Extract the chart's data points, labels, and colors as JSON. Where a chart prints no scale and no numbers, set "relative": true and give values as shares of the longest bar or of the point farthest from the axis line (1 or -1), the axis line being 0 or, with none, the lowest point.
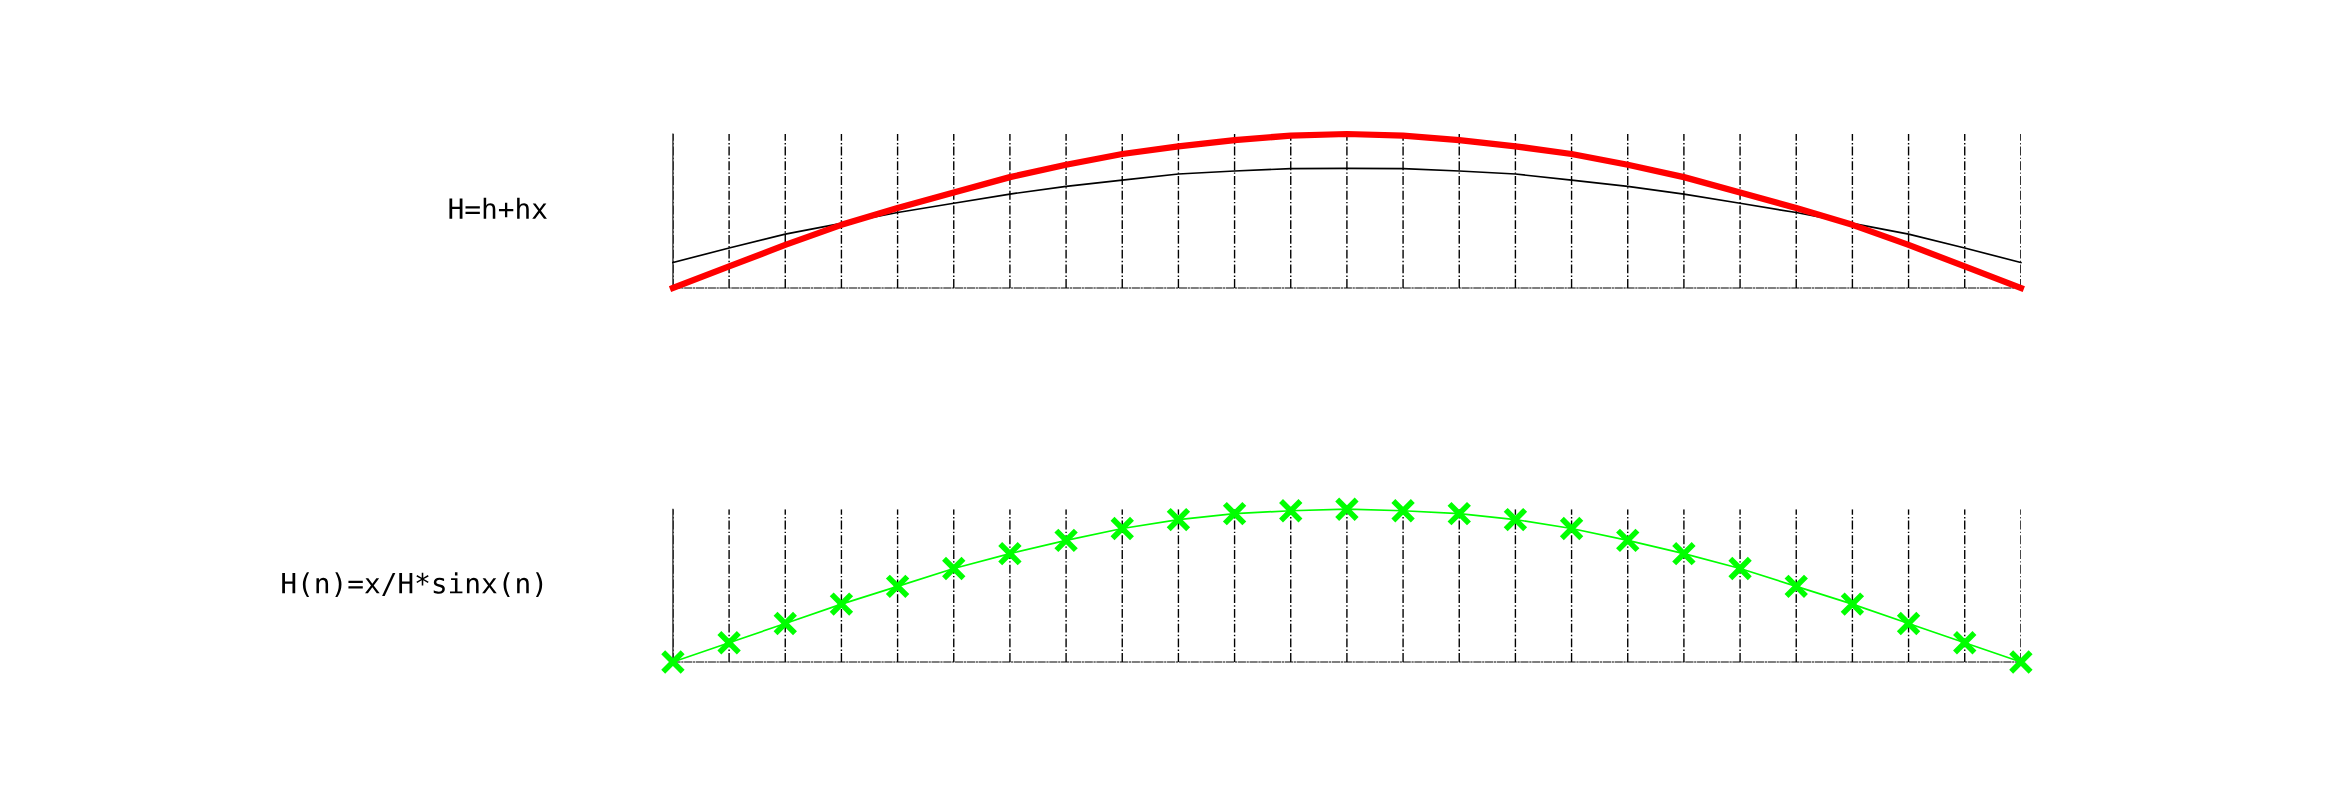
{
  "chart_data": [
    {
      "type": "line",
      "relative": true,
      "ylabel": "H=h+hx",
      "grid": "x",
      "categories": [
        null,
        null,
        null,
        null,
        null,
        null,
        null,
        null,
        null,
        null,
        null,
        null,
        null,
        null,
        null,
        null,
        null,
        null,
        null,
        null,
        null,
        null,
        null,
        null,
        null
      ],
      "series": [
        {
          "color": "#000000",
          "values": [
            0.165,
            0.26,
            0.35,
            0.42,
            0.49,
            0.55,
            0.61,
            0.66,
            0.7,
            0.74,
            0.76,
            0.775,
            0.777,
            0.775,
            0.76,
            0.74,
            0.7,
            0.66,
            0.61,
            0.55,
            0.49,
            0.42,
            0.35,
            0.26,
            0.165
          ]
        },
        {
          "color": "#ff0000",
          "values": [
            0,
            0.14,
            0.28,
            0.41,
            0.52,
            0.62,
            0.72,
            0.8,
            0.87,
            0.92,
            0.96,
            0.99,
            1,
            0.99,
            0.96,
            0.92,
            0.87,
            0.8,
            0.72,
            0.62,
            0.52,
            0.41,
            0.28,
            0.14,
            0
          ]
        }
      ]
    },
    {
      "type": "line",
      "relative": true,
      "ylabel": "H(n)=x/H*sinx(n)",
      "grid": "x",
      "marker": "cross",
      "categories": [
        null,
        null,
        null,
        null,
        null,
        null,
        null,
        null,
        null,
        null,
        null,
        null,
        null,
        null,
        null,
        null,
        null,
        null,
        null,
        null,
        null,
        null,
        null,
        null,
        null
      ],
      "series": [
        {
          "color": "#00ff00",
          "values": [
            0,
            0.126,
            0.252,
            0.379,
            0.495,
            0.612,
            0.709,
            0.796,
            0.874,
            0.932,
            0.971,
            0.99,
            1,
            0.99,
            0.971,
            0.932,
            0.874,
            0.796,
            0.709,
            0.612,
            0.495,
            0.379,
            0.252,
            0.126,
            0
          ]
        }
      ]
    }
  ]
}
